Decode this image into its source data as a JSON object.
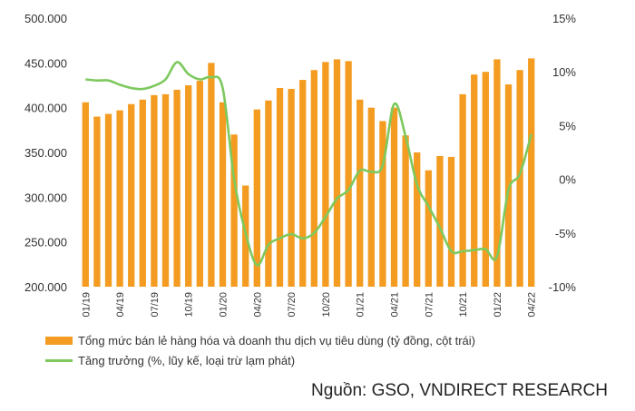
{
  "chart_data": {
    "type": "bar+line",
    "categories": [
      "01/19",
      "02/19",
      "03/19",
      "04/19",
      "05/19",
      "06/19",
      "07/19",
      "08/19",
      "09/19",
      "10/19",
      "11/19",
      "12/19",
      "01/20",
      "02/20",
      "03/20",
      "04/20",
      "05/20",
      "06/20",
      "07/20",
      "08/20",
      "09/20",
      "10/20",
      "11/20",
      "12/20",
      "01/21",
      "02/21",
      "03/21",
      "04/21",
      "05/21",
      "06/21",
      "07/21",
      "08/21",
      "09/21",
      "10/21",
      "11/21",
      "12/21",
      "01/22",
      "02/22",
      "03/22",
      "04/22"
    ],
    "x_tick_labels": [
      "01/19",
      "04/19",
      "07/19",
      "10/19",
      "01/20",
      "04/20",
      "07/20",
      "10/20",
      "01/21",
      "04/21",
      "07/21",
      "10/21",
      "01/22",
      "04/22"
    ],
    "series": [
      {
        "name": "Tổng mức bán lẻ hàng hóa và doanh thu dịch vụ tiêu dùng (tỷ đồng, cột trái)",
        "type": "bar",
        "axis": "left",
        "color": "#F39C21",
        "values": [
          406000,
          390000,
          393000,
          397000,
          404000,
          409000,
          414000,
          415000,
          420000,
          425000,
          430000,
          450000,
          406000,
          370000,
          313000,
          398000,
          408000,
          422000,
          421000,
          431000,
          442000,
          451000,
          454000,
          452000,
          409000,
          400000,
          385000,
          400000,
          369000,
          350000,
          330000,
          346000,
          345000,
          415000,
          437000,
          440000,
          454000,
          426000,
          442000,
          455000
        ]
      },
      {
        "name": "Tăng trưởng (%, lũy kế, loại trừ lạm phát)",
        "type": "line",
        "axis": "right",
        "color": "#7DC95E",
        "values": [
          9.3,
          9.2,
          9.2,
          8.8,
          8.5,
          8.4,
          8.7,
          9.3,
          10.9,
          9.8,
          9.3,
          9.5,
          8.5,
          0.0,
          -5.0,
          -8.0,
          -6.1,
          -5.5,
          -5.1,
          -5.5,
          -5.0,
          -3.5,
          -1.8,
          -1.0,
          0.8,
          0.7,
          1.3,
          7.0,
          4.0,
          -0.5,
          -2.5,
          -4.5,
          -6.7,
          -6.7,
          -6.6,
          -6.5,
          -7.2,
          -1.0,
          0.5,
          4.2
        ]
      }
    ],
    "y_left": {
      "min": 200000,
      "max": 500000,
      "ticks": [
        "200.000",
        "250.000",
        "300.000",
        "350.000",
        "400.000",
        "450.000",
        "500.000"
      ]
    },
    "y_right": {
      "min": -10,
      "max": 15,
      "ticks": [
        "-10%",
        "-5%",
        "0%",
        "5%",
        "10%",
        "15%"
      ]
    },
    "grid": false,
    "legend_position": "bottom-left"
  },
  "legend": {
    "bar_label": "Tổng mức bán lẻ hàng hóa và doanh thu dịch vụ tiêu dùng (tỷ đồng, cột trái)",
    "line_label": "Tăng trưởng (%, lũy kế, loại trừ lạm phát)"
  },
  "source": "Nguồn: GSO, VNDIRECT RESEARCH"
}
